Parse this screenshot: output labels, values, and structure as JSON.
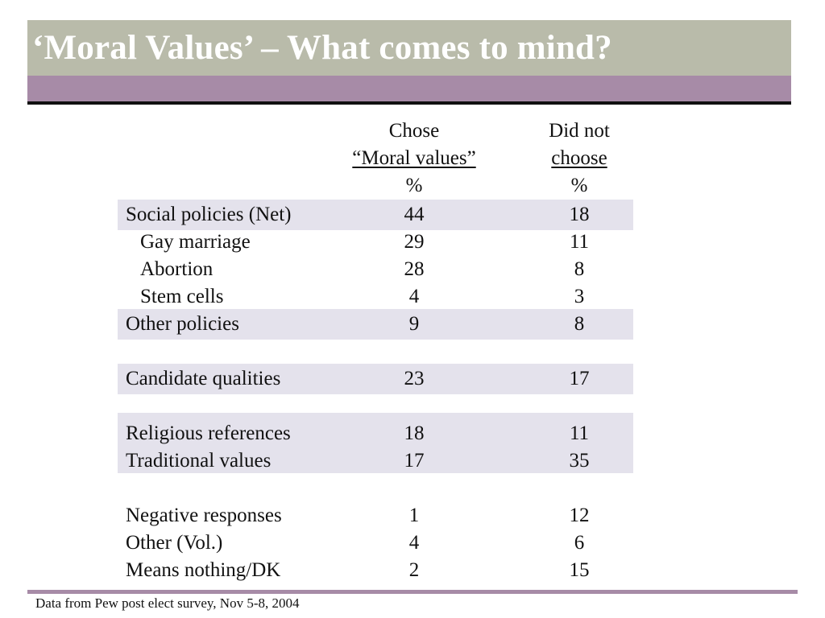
{
  "slide": {
    "title": "‘Moral Values’ – What comes to mind?",
    "footer": "Data from Pew post elect survey, Nov 5-8, 2004",
    "colors": {
      "title_bar": "#b9bbaa",
      "accent_bar": "#a78ba7",
      "row_shade": "#e4e2ec",
      "title_text": "#ffffff"
    }
  },
  "table": {
    "col1_header": {
      "line1": "Chose",
      "line2": "“Moral values”",
      "line3": "%"
    },
    "col2_header": {
      "line1": "Did not",
      "line2": "choose",
      "line3": "%"
    },
    "rows": [
      {
        "label": "Social policies (Net)",
        "chose": "44",
        "did_not": "18"
      },
      {
        "label": "Gay marriage",
        "chose": "29",
        "did_not": "11"
      },
      {
        "label": "Abortion",
        "chose": "28",
        "did_not": "8"
      },
      {
        "label": "Stem cells",
        "chose": "4",
        "did_not": "3"
      },
      {
        "label": "Other policies",
        "chose": "9",
        "did_not": "8"
      },
      {
        "label": "Candidate qualities",
        "chose": "23",
        "did_not": "17"
      },
      {
        "label": "Religious references",
        "chose": "18",
        "did_not": "11"
      },
      {
        "label": "Traditional values",
        "chose": "17",
        "did_not": "35"
      },
      {
        "label": "Negative responses",
        "chose": "1",
        "did_not": "12"
      },
      {
        "label": "Other (Vol.)",
        "chose": "4",
        "did_not": "6"
      },
      {
        "label": "Means nothing/DK",
        "chose": "2",
        "did_not": "15"
      }
    ]
  }
}
